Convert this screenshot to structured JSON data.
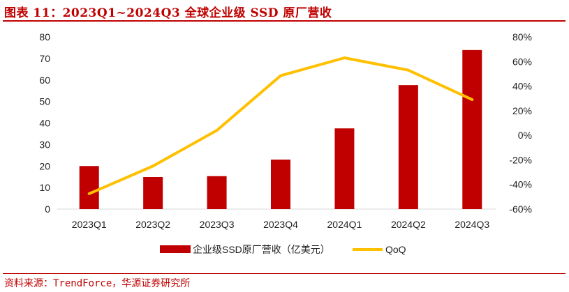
{
  "title": "图表 11：2023Q1~2024Q3 全球企业级 SSD 原厂营收",
  "source": "资料来源：TrendForce，华源证券研究所",
  "chart_data": {
    "type": "bar+line",
    "categories": [
      "2023Q1",
      "2023Q2",
      "2023Q3",
      "2023Q4",
      "2024Q1",
      "2024Q2",
      "2024Q3"
    ],
    "series": [
      {
        "name": "企业级SSD原厂营收（亿美元）",
        "type": "bar",
        "axis": "left",
        "color": "#c00000",
        "values": [
          20.0,
          14.9,
          15.3,
          23.0,
          37.5,
          57.6,
          73.9
        ]
      },
      {
        "name": "QoQ",
        "type": "line",
        "axis": "right",
        "color": "#ffc000",
        "values": [
          -47.5,
          -25.0,
          4.0,
          48.5,
          63.0,
          53.0,
          29.0
        ]
      }
    ],
    "left_axis": {
      "ylim": [
        0,
        80
      ],
      "ticks": [
        "0",
        "10",
        "20",
        "30",
        "40",
        "50",
        "60",
        "70",
        "80"
      ]
    },
    "right_axis": {
      "ylim": [
        -60,
        80
      ],
      "ticks": [
        "-60%",
        "-40%",
        "-20%",
        "0%",
        "20%",
        "40%",
        "60%",
        "80%"
      ]
    },
    "grid": false,
    "legend_position": "bottom"
  }
}
